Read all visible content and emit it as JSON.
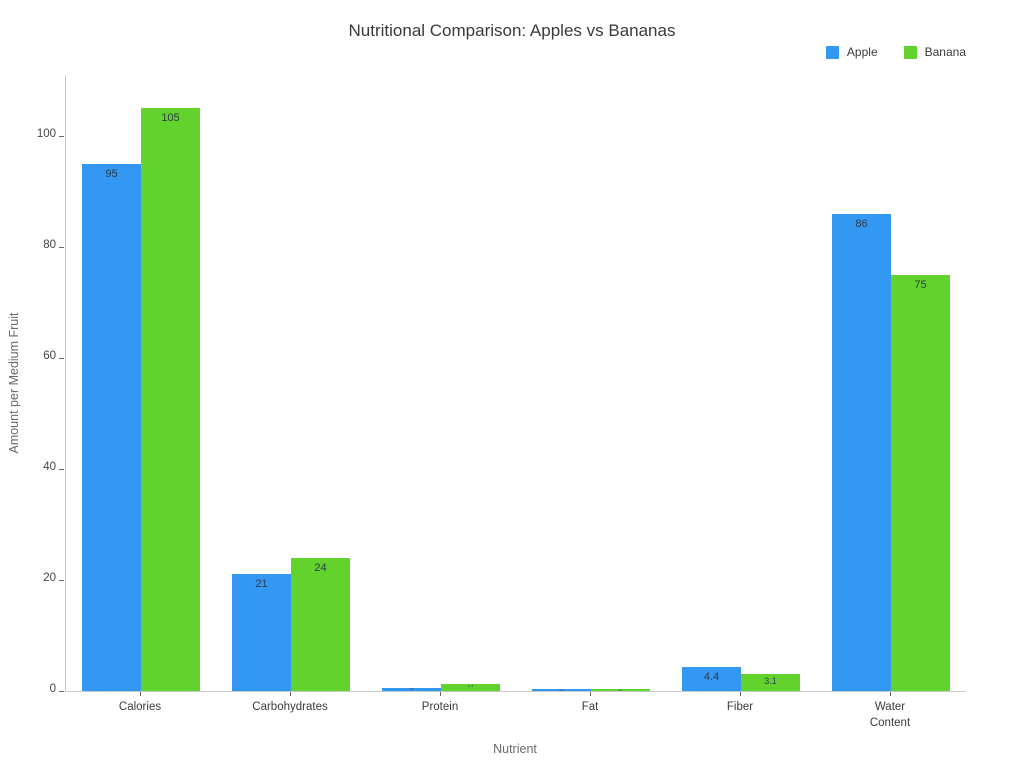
{
  "title": "Nutritional Comparison: Apples vs Bananas",
  "chart_data": {
    "type": "bar",
    "title": "Nutritional Comparison: Apples vs Bananas",
    "categories": [
      "Calories",
      "Carbohydrates",
      "Protein",
      "Fat",
      "Fiber",
      "Water Content"
    ],
    "series": [
      {
        "name": "Apple",
        "color": "#3398F2",
        "values": [
          95,
          21,
          0.5,
          0.3,
          4.4,
          86
        ],
        "labels": [
          "95",
          "21",
          "0.5",
          "0.3",
          "4.4",
          "86"
        ]
      },
      {
        "name": "Banana",
        "color": "#62D22C",
        "values": [
          105,
          24,
          1.3,
          0.4,
          3.1,
          75
        ],
        "labels": [
          "105",
          "24",
          "1.3",
          "0.4",
          "3.1",
          "75"
        ]
      }
    ],
    "xlabel": "Nutrient",
    "ylabel": "Amount per Medium Fruit",
    "ylim": [
      0,
      111
    ],
    "yticks": [
      0,
      20,
      40,
      60,
      80,
      100
    ],
    "legend_position": "top-right",
    "grid": false
  }
}
